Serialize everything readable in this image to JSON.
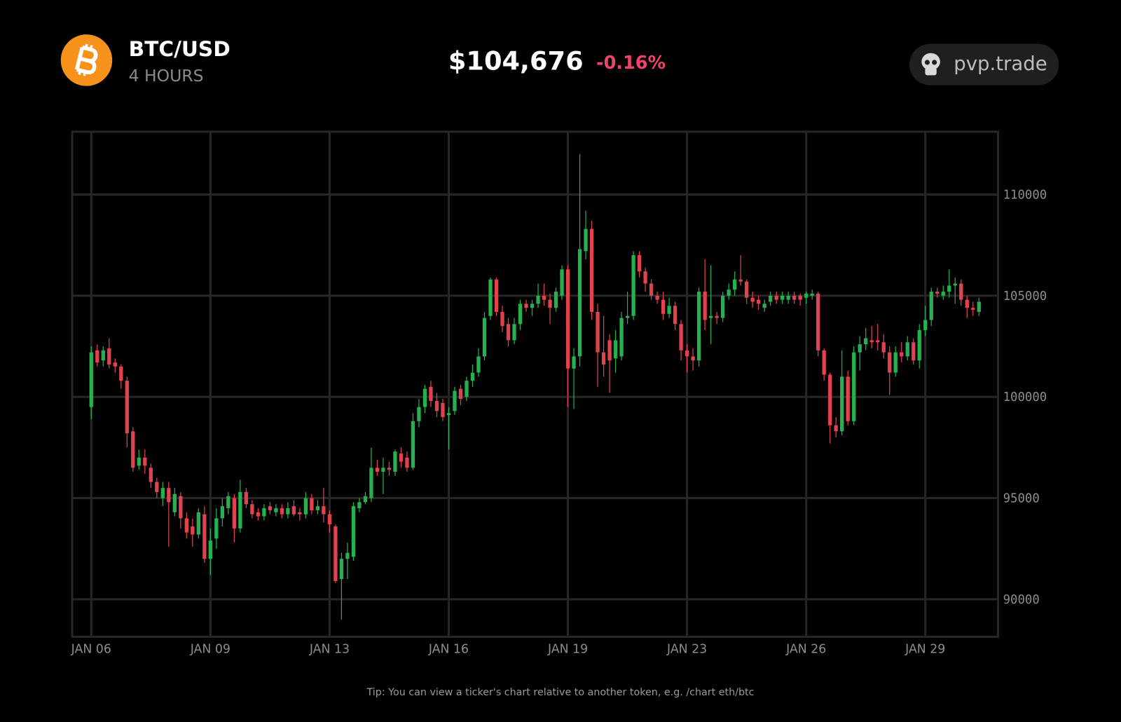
{
  "header": {
    "pair": "BTC/USD",
    "interval": "4 HOURS",
    "price": "$104,676",
    "change": "-0.16%",
    "brand": "pvp.trade"
  },
  "tip": "Tip: You can view a ticker's chart relative to another token, e.g. /chart eth/btc",
  "chart_data": {
    "type": "candlestick",
    "up_color": "#26b04f",
    "down_color": "#e0434d",
    "grid": true,
    "ylim": [
      88150,
      113100
    ],
    "yticks": [
      90000,
      95000,
      100000,
      105000,
      110000
    ],
    "xlim": [
      -3.2,
      152.2
    ],
    "xticks": [
      {
        "value": 0,
        "label": "JAN 06"
      },
      {
        "value": 20,
        "label": "JAN 09"
      },
      {
        "value": 40,
        "label": "JAN 13"
      },
      {
        "value": 60,
        "label": "JAN 16"
      },
      {
        "value": 80,
        "label": "JAN 19"
      },
      {
        "value": 100,
        "label": "JAN 23"
      },
      {
        "value": 120,
        "label": "JAN 26"
      },
      {
        "value": 140,
        "label": "JAN 29"
      }
    ],
    "candles": [
      [
        99500,
        102500,
        98900,
        102200
      ],
      [
        102300,
        102600,
        101500,
        101700
      ],
      [
        101800,
        102500,
        101500,
        102300
      ],
      [
        102400,
        102900,
        101400,
        101600
      ],
      [
        101700,
        101900,
        101200,
        101500
      ],
      [
        101500,
        101600,
        100400,
        100800
      ],
      [
        100800,
        101000,
        97500,
        98200
      ],
      [
        98300,
        98500,
        96300,
        96500
      ],
      [
        96600,
        97400,
        96400,
        97000
      ],
      [
        97000,
        97400,
        96200,
        96600
      ],
      [
        96500,
        96700,
        95500,
        95800
      ],
      [
        95800,
        96000,
        95000,
        95300
      ],
      [
        95000,
        95800,
        94600,
        95500
      ],
      [
        95500,
        95800,
        92600,
        94800
      ],
      [
        94300,
        95500,
        94100,
        95200
      ],
      [
        95100,
        95300,
        93500,
        94000
      ],
      [
        94000,
        94300,
        93000,
        93300
      ],
      [
        93600,
        94000,
        92600,
        93200
      ],
      [
        93200,
        94500,
        93000,
        94300
      ],
      [
        94200,
        94600,
        91800,
        92000
      ],
      [
        92000,
        93500,
        91200,
        92900
      ],
      [
        93000,
        94500,
        92500,
        94000
      ],
      [
        94000,
        95000,
        93600,
        94600
      ],
      [
        94500,
        95300,
        94200,
        95100
      ],
      [
        95000,
        95200,
        92800,
        93500
      ],
      [
        93500,
        95900,
        93300,
        95300
      ],
      [
        95300,
        95500,
        94500,
        94700
      ],
      [
        94700,
        94900,
        94000,
        94200
      ],
      [
        94300,
        94500,
        93900,
        94100
      ],
      [
        94100,
        94700,
        93900,
        94500
      ],
      [
        94600,
        94800,
        94200,
        94400
      ],
      [
        94300,
        94700,
        94100,
        94500
      ],
      [
        94500,
        94700,
        94000,
        94200
      ],
      [
        94200,
        94800,
        94000,
        94500
      ],
      [
        94600,
        94900,
        94100,
        94200
      ],
      [
        94300,
        94500,
        93900,
        94200
      ],
      [
        94200,
        95300,
        94000,
        95000
      ],
      [
        95000,
        95200,
        94200,
        94400
      ],
      [
        94400,
        94900,
        94200,
        94600
      ],
      [
        94600,
        95500,
        93800,
        94200
      ],
      [
        94200,
        94400,
        93300,
        93700
      ],
      [
        93600,
        93700,
        90800,
        90900
      ],
      [
        91000,
        92300,
        89000,
        92000
      ],
      [
        92000,
        92800,
        91000,
        92300
      ],
      [
        92100,
        94800,
        91900,
        94600
      ],
      [
        94500,
        95000,
        94300,
        94800
      ],
      [
        94800,
        95300,
        94700,
        95100
      ],
      [
        95000,
        97500,
        94800,
        96500
      ],
      [
        96500,
        96900,
        96100,
        96300
      ],
      [
        96300,
        97000,
        95200,
        96500
      ],
      [
        96500,
        96800,
        96100,
        96400
      ],
      [
        96300,
        97400,
        96100,
        97300
      ],
      [
        97200,
        97500,
        96500,
        96800
      ],
      [
        97000,
        97300,
        96300,
        96500
      ],
      [
        96500,
        99200,
        96400,
        98800
      ],
      [
        98800,
        99900,
        98500,
        99500
      ],
      [
        99500,
        100600,
        99200,
        100400
      ],
      [
        100500,
        100800,
        99500,
        99800
      ],
      [
        99800,
        100200,
        99000,
        99300
      ],
      [
        99700,
        99900,
        98800,
        99000
      ],
      [
        99100,
        99500,
        97400,
        99200
      ],
      [
        99300,
        100500,
        99100,
        100300
      ],
      [
        100400,
        100600,
        99600,
        99900
      ],
      [
        100000,
        101000,
        99800,
        100800
      ],
      [
        100800,
        101600,
        100500,
        101200
      ],
      [
        101200,
        102400,
        101000,
        102000
      ],
      [
        102000,
        104200,
        101800,
        103900
      ],
      [
        104000,
        105900,
        103800,
        105800
      ],
      [
        105800,
        105900,
        104000,
        104200
      ],
      [
        104200,
        104500,
        103200,
        103500
      ],
      [
        103600,
        103900,
        102500,
        102800
      ],
      [
        102800,
        103900,
        102600,
        103600
      ],
      [
        103600,
        104800,
        103300,
        104600
      ],
      [
        104600,
        104800,
        104200,
        104400
      ],
      [
        104400,
        104800,
        104000,
        104600
      ],
      [
        104600,
        105600,
        104400,
        105000
      ],
      [
        105000,
        105600,
        104500,
        104800
      ],
      [
        104800,
        105100,
        103600,
        104400
      ],
      [
        104400,
        105400,
        104200,
        105200
      ],
      [
        105000,
        106500,
        104800,
        106300
      ],
      [
        106300,
        106500,
        99500,
        101400
      ],
      [
        101400,
        102400,
        99400,
        102000
      ],
      [
        102000,
        112000,
        101500,
        107300
      ],
      [
        107200,
        109200,
        106800,
        108300
      ],
      [
        108300,
        108700,
        103800,
        104200
      ],
      [
        104200,
        104600,
        100500,
        102200
      ],
      [
        102200,
        104000,
        101000,
        101600
      ],
      [
        102800,
        103100,
        100200,
        101800
      ],
      [
        101900,
        103300,
        101200,
        102800
      ],
      [
        102000,
        104200,
        101800,
        103900
      ],
      [
        103900,
        105200,
        103600,
        104000
      ],
      [
        104000,
        107200,
        103800,
        107000
      ],
      [
        107000,
        107200,
        105900,
        106200
      ],
      [
        106200,
        106400,
        105200,
        105600
      ],
      [
        105600,
        105800,
        104800,
        105000
      ],
      [
        105000,
        105200,
        104600,
        104800
      ],
      [
        104800,
        105200,
        103800,
        104100
      ],
      [
        104100,
        104900,
        103900,
        104500
      ],
      [
        104500,
        104700,
        103300,
        103600
      ],
      [
        103600,
        103800,
        101800,
        102300
      ],
      [
        102300,
        102600,
        101200,
        102000
      ],
      [
        102000,
        102400,
        101300,
        101800
      ],
      [
        101800,
        105400,
        101500,
        105200
      ],
      [
        105200,
        106800,
        103300,
        103800
      ],
      [
        103900,
        106500,
        102600,
        104000
      ],
      [
        104000,
        104200,
        103600,
        103900
      ],
      [
        103900,
        105200,
        103700,
        105000
      ],
      [
        105000,
        105600,
        104800,
        105300
      ],
      [
        105300,
        106200,
        105000,
        105800
      ],
      [
        105800,
        107000,
        105500,
        105700
      ],
      [
        105700,
        105800,
        104600,
        104900
      ],
      [
        104900,
        105200,
        104400,
        104700
      ],
      [
        104800,
        105000,
        104300,
        104600
      ],
      [
        104400,
        104800,
        104200,
        104600
      ],
      [
        104700,
        105200,
        104500,
        105000
      ],
      [
        105000,
        105200,
        104600,
        104800
      ],
      [
        104800,
        105200,
        104600,
        105000
      ],
      [
        104800,
        105200,
        104600,
        105000
      ],
      [
        105000,
        105200,
        104600,
        104800
      ],
      [
        105000,
        105100,
        104500,
        104800
      ],
      [
        104900,
        105200,
        104600,
        105100
      ],
      [
        105000,
        105300,
        104800,
        105100
      ],
      [
        105100,
        105200,
        102000,
        102300
      ],
      [
        102300,
        102400,
        100800,
        101100
      ],
      [
        101100,
        101200,
        97700,
        98600
      ],
      [
        98600,
        99000,
        98000,
        98300
      ],
      [
        98300,
        102300,
        98100,
        101000
      ],
      [
        101000,
        101300,
        98600,
        98800
      ],
      [
        98800,
        102500,
        98600,
        102200
      ],
      [
        102200,
        103000,
        101300,
        102600
      ],
      [
        102600,
        103400,
        102300,
        102900
      ],
      [
        102800,
        103500,
        102400,
        102700
      ],
      [
        102800,
        103600,
        102300,
        102700
      ],
      [
        102700,
        103100,
        101900,
        102200
      ],
      [
        102200,
        102500,
        100100,
        101200
      ],
      [
        101200,
        102500,
        101000,
        102200
      ],
      [
        102200,
        102700,
        101700,
        102000
      ],
      [
        102000,
        103000,
        101800,
        102700
      ],
      [
        102700,
        102900,
        101600,
        101800
      ],
      [
        101800,
        103600,
        101400,
        103300
      ],
      [
        103300,
        104500,
        103000,
        103800
      ],
      [
        103800,
        105400,
        103500,
        105200
      ],
      [
        105200,
        105400,
        104900,
        105100
      ],
      [
        105000,
        105500,
        104800,
        105200
      ],
      [
        105200,
        106300,
        104900,
        105500
      ],
      [
        105500,
        105900,
        104600,
        105600
      ],
      [
        105600,
        105800,
        104500,
        104800
      ],
      [
        104800,
        105000,
        103900,
        104400
      ],
      [
        104400,
        104700,
        104000,
        104300
      ],
      [
        104200,
        104900,
        104000,
        104700
      ]
    ]
  }
}
